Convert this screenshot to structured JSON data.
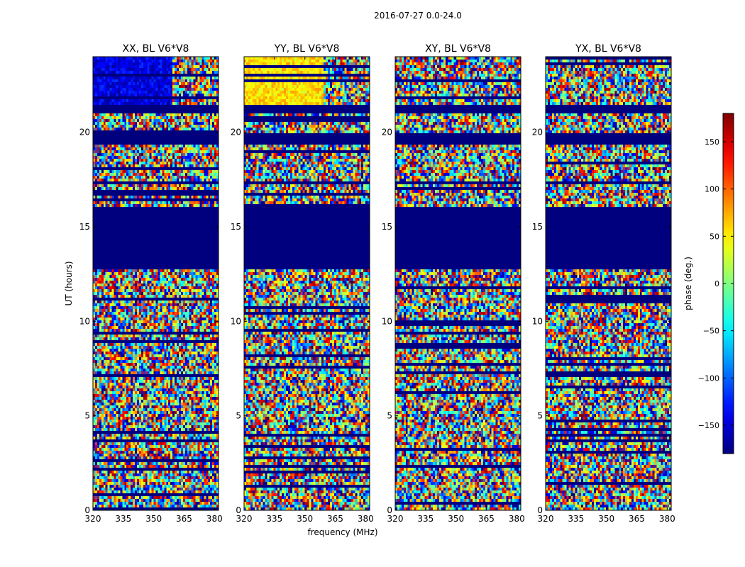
{
  "chart_data": {
    "type": "heatmap",
    "suptitle": "2016-07-27 0.0-24.0",
    "xlabel": "frequency (MHz)",
    "ylabel": "UT (hours)",
    "xlim": [
      320,
      382
    ],
    "ylim": [
      0,
      24
    ],
    "xticks": [
      320,
      335,
      350,
      365,
      380
    ],
    "yticks": [
      0,
      5,
      10,
      15,
      20
    ],
    "panels": [
      {
        "title": "XX, BL V6*V8"
      },
      {
        "title": "YY, BL V6*V8"
      },
      {
        "title": "XY, BL V6*V8"
      },
      {
        "title": "YX, BL V6*V8"
      }
    ],
    "flagged_ut_ranges": [
      [
        12.8,
        16.1
      ],
      [
        17.3,
        17.4
      ],
      [
        16.9,
        17.0
      ],
      [
        19.3,
        20.0
      ],
      [
        21.0,
        21.5
      ]
    ],
    "colorbar": {
      "label": "phase (deg.)",
      "vmin": -180,
      "vmax": 180,
      "ticks": [
        -150,
        -100,
        -50,
        0,
        50,
        100,
        150
      ],
      "tick_labels": [
        "−150",
        "−100",
        "−50",
        "0",
        "50",
        "100",
        "150"
      ],
      "colormap": "jet"
    }
  }
}
